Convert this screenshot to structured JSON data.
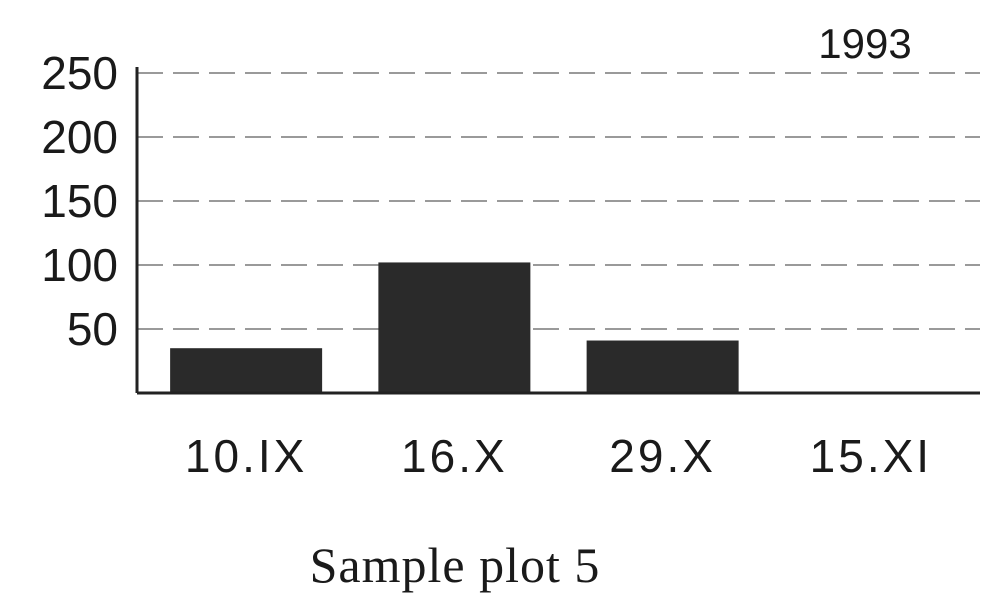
{
  "chart_data": {
    "type": "bar",
    "annotation": "1993",
    "caption": "Sample plot 5",
    "categories": [
      "10.IX",
      "16.X",
      "29.X",
      "15.XI"
    ],
    "values": [
      35,
      102,
      41,
      0
    ],
    "yticks": [
      50,
      100,
      150,
      200,
      250
    ],
    "ylim": [
      0,
      250
    ],
    "grid": true,
    "bar_color": "#2a2a2a"
  }
}
